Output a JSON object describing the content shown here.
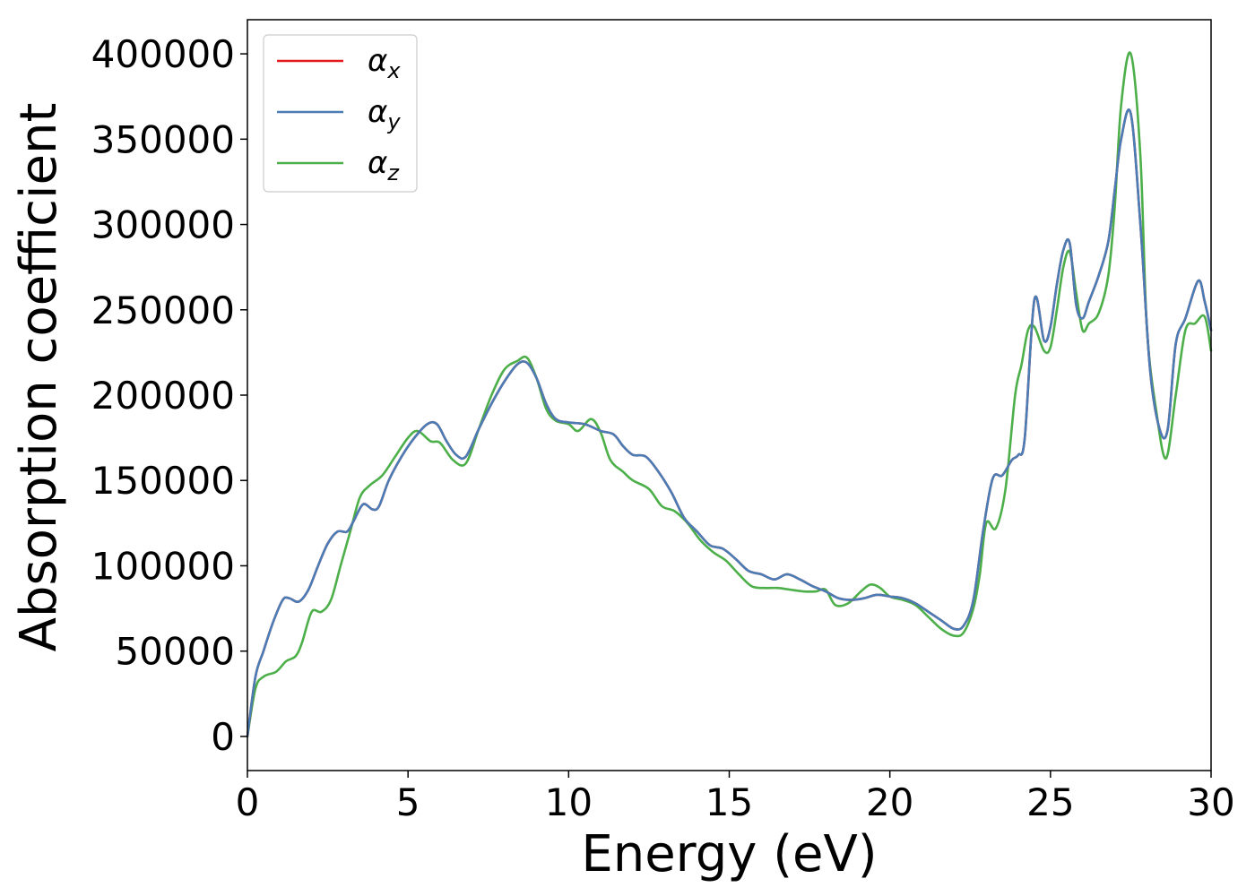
{
  "chart_data": {
    "type": "line",
    "xlabel": "Energy (eV)",
    "ylabel": "Absorption coefficient",
    "xlim": [
      0,
      30
    ],
    "ylim": [
      -20000,
      420000
    ],
    "x_ticks": [
      0,
      5,
      10,
      15,
      20,
      25,
      30
    ],
    "y_ticks": [
      0,
      50000,
      100000,
      150000,
      200000,
      250000,
      300000,
      350000,
      400000
    ],
    "grid": false,
    "legend_position": "top-left",
    "series": [
      {
        "name": "αx",
        "symbol": "α",
        "subscript": "x",
        "color": "#e41a1c",
        "x": [
          0,
          0.25,
          0.5,
          0.8,
          1.1,
          1.3,
          1.6,
          1.9,
          2.2,
          2.5,
          2.8,
          3.1,
          3.3,
          3.6,
          3.9,
          4.1,
          4.4,
          4.8,
          5.2,
          5.6,
          5.9,
          6.2,
          6.5,
          6.8,
          7.2,
          7.6,
          8.0,
          8.4,
          8.7,
          9.0,
          9.3,
          9.6,
          10.0,
          10.5,
          11.0,
          11.4,
          11.7,
          12.0,
          12.4,
          12.8,
          13.2,
          13.6,
          14.0,
          14.4,
          14.8,
          15.2,
          15.6,
          16.0,
          16.4,
          16.8,
          17.2,
          17.6,
          18.0,
          18.4,
          18.8,
          19.2,
          19.6,
          20.0,
          20.4,
          20.8,
          21.2,
          21.6,
          22.0,
          22.3,
          22.6,
          22.9,
          23.2,
          23.5,
          23.8,
          24.0,
          24.2,
          24.5,
          24.8,
          25.0,
          25.2,
          25.4,
          25.6,
          25.8,
          26.0,
          26.2,
          26.5,
          26.8,
          27.0,
          27.2,
          27.5,
          27.8,
          28.1,
          28.4,
          28.65,
          28.9,
          29.2,
          29.6,
          29.8,
          30.0
        ],
        "y": [
          0,
          35000,
          50000,
          67000,
          80000,
          81000,
          79000,
          86000,
          100000,
          113000,
          120000,
          120000,
          126000,
          136000,
          133000,
          135000,
          150000,
          164000,
          175000,
          183000,
          183000,
          173000,
          165000,
          164000,
          180000,
          195000,
          208000,
          218000,
          219000,
          210000,
          195000,
          186000,
          184000,
          183000,
          179000,
          177000,
          170000,
          165000,
          164000,
          155000,
          143000,
          128000,
          120000,
          112000,
          110000,
          104000,
          97000,
          95000,
          92000,
          95000,
          92000,
          88000,
          85000,
          81000,
          80000,
          81000,
          83000,
          82000,
          81000,
          78000,
          73000,
          68000,
          63000,
          65000,
          80000,
          120000,
          151000,
          153000,
          162000,
          165000,
          175000,
          256000,
          232000,
          240000,
          265000,
          285000,
          289000,
          253000,
          245000,
          255000,
          270000,
          290000,
          320000,
          350000,
          365000,
          300000,
          215000,
          180000,
          180000,
          230000,
          245000,
          267000,
          255000,
          238000
        ]
      },
      {
        "name": "αy",
        "symbol": "α",
        "subscript": "y",
        "color": "#4a7db5",
        "x": [
          0,
          0.25,
          0.5,
          0.8,
          1.1,
          1.3,
          1.6,
          1.9,
          2.2,
          2.5,
          2.8,
          3.1,
          3.3,
          3.6,
          3.9,
          4.1,
          4.4,
          4.8,
          5.2,
          5.6,
          5.9,
          6.2,
          6.5,
          6.8,
          7.2,
          7.6,
          8.0,
          8.4,
          8.7,
          9.0,
          9.3,
          9.6,
          10.0,
          10.5,
          11.0,
          11.4,
          11.7,
          12.0,
          12.4,
          12.8,
          13.2,
          13.6,
          14.0,
          14.4,
          14.8,
          15.2,
          15.6,
          16.0,
          16.4,
          16.8,
          17.2,
          17.6,
          18.0,
          18.4,
          18.8,
          19.2,
          19.6,
          20.0,
          20.4,
          20.8,
          21.2,
          21.6,
          22.0,
          22.3,
          22.6,
          22.9,
          23.2,
          23.5,
          23.8,
          24.0,
          24.2,
          24.5,
          24.8,
          25.0,
          25.2,
          25.4,
          25.6,
          25.8,
          26.0,
          26.2,
          26.5,
          26.8,
          27.0,
          27.2,
          27.5,
          27.8,
          28.1,
          28.4,
          28.65,
          28.9,
          29.2,
          29.6,
          29.8,
          30.0
        ],
        "y": [
          0,
          35000,
          50000,
          67000,
          80000,
          81000,
          79000,
          86000,
          100000,
          113000,
          120000,
          120000,
          126000,
          136000,
          133000,
          135000,
          150000,
          164000,
          175000,
          183000,
          183000,
          173000,
          165000,
          164000,
          180000,
          195000,
          208000,
          218000,
          219000,
          210000,
          195000,
          186000,
          184000,
          183000,
          179000,
          177000,
          170000,
          165000,
          164000,
          155000,
          143000,
          128000,
          120000,
          112000,
          110000,
          104000,
          97000,
          95000,
          92000,
          95000,
          92000,
          88000,
          85000,
          81000,
          80000,
          81000,
          83000,
          82000,
          81000,
          78000,
          73000,
          68000,
          63000,
          65000,
          80000,
          120000,
          151000,
          153000,
          162000,
          165000,
          175000,
          256000,
          232000,
          240000,
          265000,
          285000,
          289000,
          253000,
          245000,
          255000,
          270000,
          290000,
          320000,
          350000,
          365000,
          300000,
          215000,
          180000,
          180000,
          230000,
          245000,
          267000,
          255000,
          238000
        ]
      },
      {
        "name": "αz",
        "symbol": "α",
        "subscript": "z",
        "color": "#4daf4a",
        "x": [
          0,
          0.25,
          0.5,
          0.9,
          1.2,
          1.5,
          1.7,
          2.0,
          2.3,
          2.6,
          2.9,
          3.2,
          3.5,
          3.8,
          4.2,
          4.6,
          5.0,
          5.3,
          5.7,
          6.0,
          6.4,
          6.8,
          7.2,
          7.6,
          8.0,
          8.4,
          8.7,
          9.0,
          9.3,
          9.6,
          10.0,
          10.3,
          10.7,
          11.0,
          11.3,
          11.7,
          12.0,
          12.5,
          12.9,
          13.3,
          13.7,
          14.1,
          14.5,
          14.9,
          15.3,
          15.7,
          16.1,
          16.5,
          16.9,
          17.3,
          17.7,
          18.0,
          18.3,
          18.7,
          19.1,
          19.4,
          19.7,
          20.0,
          20.4,
          20.8,
          21.2,
          21.6,
          22.0,
          22.3,
          22.6,
          22.8,
          23.0,
          23.3,
          23.6,
          23.9,
          24.1,
          24.3,
          24.5,
          24.8,
          25.0,
          25.2,
          25.4,
          25.6,
          25.8,
          26.0,
          26.2,
          26.5,
          26.8,
          27.0,
          27.2,
          27.5,
          27.8,
          28.0,
          28.3,
          28.6,
          28.9,
          29.2,
          29.5,
          29.8,
          30.0
        ],
        "y": [
          0,
          28000,
          35000,
          38000,
          44000,
          47000,
          55000,
          73000,
          73000,
          80000,
          100000,
          120000,
          140000,
          147000,
          153000,
          164000,
          175000,
          179000,
          173000,
          172000,
          162000,
          160000,
          180000,
          200000,
          215000,
          220000,
          222000,
          210000,
          192000,
          185000,
          183000,
          179000,
          186000,
          178000,
          162000,
          155000,
          150000,
          145000,
          135000,
          132000,
          125000,
          115000,
          108000,
          103000,
          95000,
          88000,
          87000,
          87000,
          86000,
          85000,
          85000,
          86000,
          77000,
          78000,
          85000,
          89000,
          87000,
          82000,
          80000,
          77000,
          70000,
          63000,
          59000,
          61000,
          75000,
          95000,
          125000,
          122000,
          145000,
          200000,
          218000,
          238000,
          240000,
          226000,
          228000,
          250000,
          275000,
          284000,
          260000,
          238000,
          242000,
          248000,
          270000,
          310000,
          370000,
          400000,
          340000,
          240000,
          190000,
          163000,
          200000,
          238000,
          242000,
          246000,
          226000
        ]
      }
    ]
  }
}
